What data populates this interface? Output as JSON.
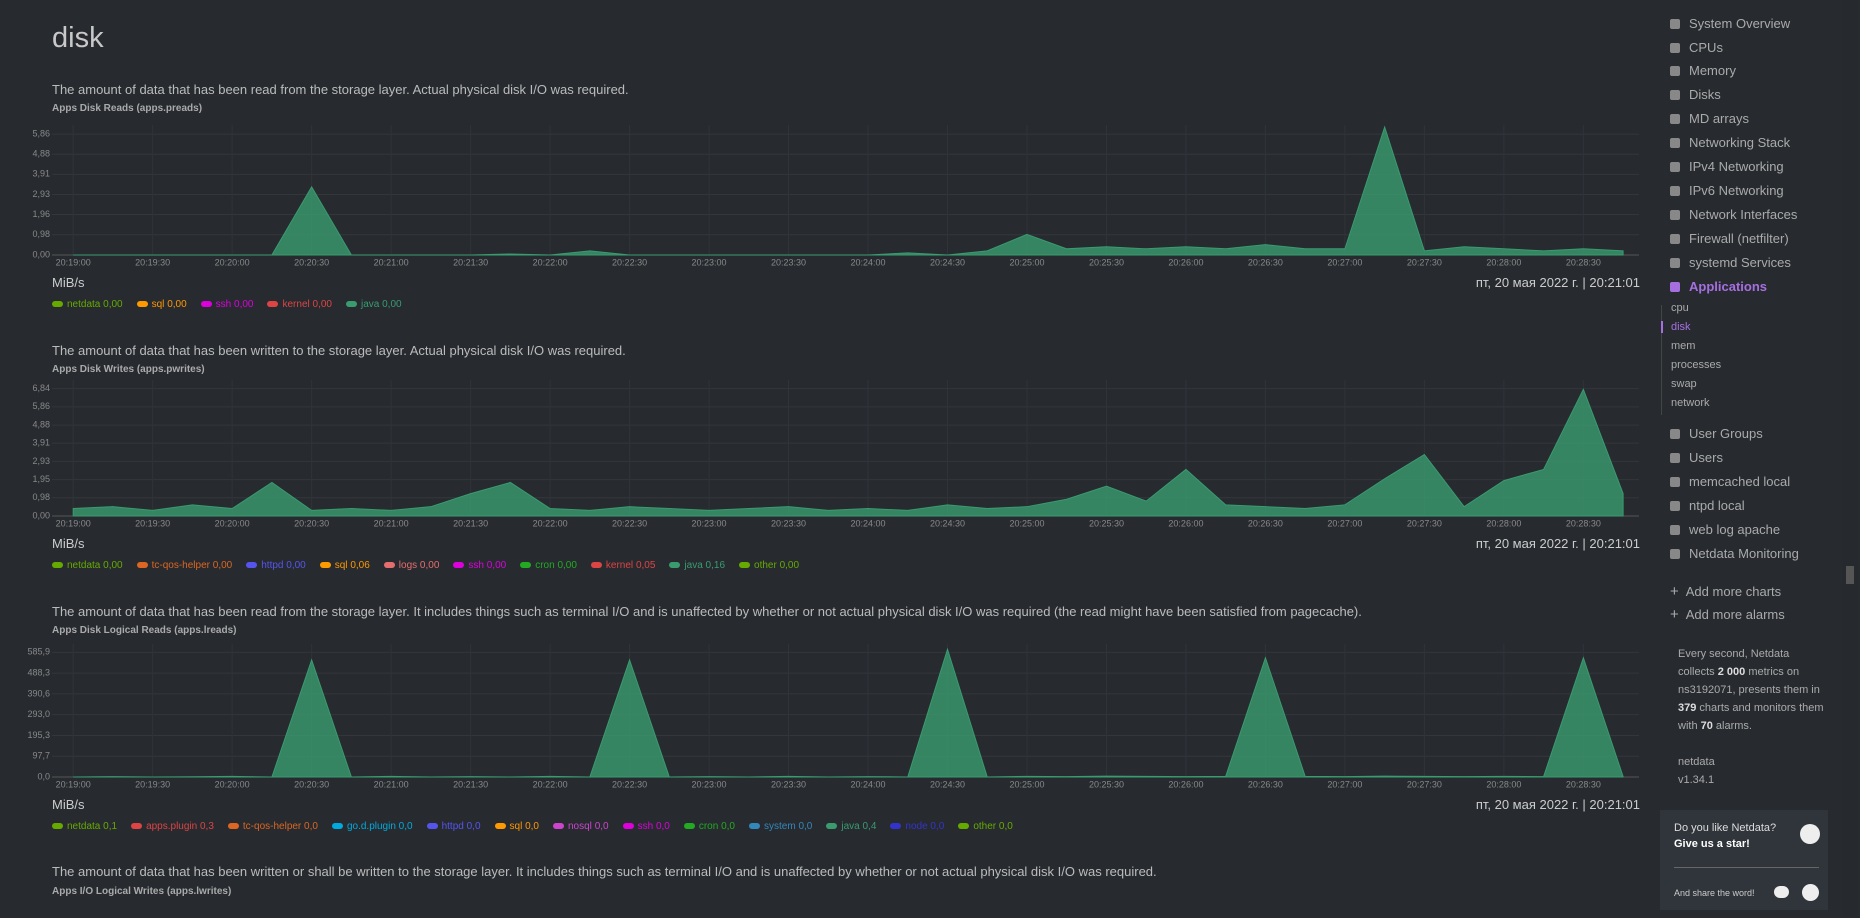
{
  "header": {
    "title": "disk"
  },
  "chart_data": [
    {
      "type": "area",
      "description": "The amount of data that has been read from the storage layer. Actual physical disk I/O was required.",
      "title": "Apps Disk Reads (apps.preads)",
      "units": "MiB/s",
      "timestamp": "пт, 20 мая 2022 г. | 20:21:01",
      "xlim": [
        73132,
        73731
      ],
      "xticks": [
        {
          "value": 73140,
          "label": "20:19:00"
        },
        {
          "value": 73170,
          "label": "20:19:30"
        },
        {
          "value": 73200,
          "label": "20:20:00"
        },
        {
          "value": 73230,
          "label": "20:20:30"
        },
        {
          "value": 73260,
          "label": "20:21:00"
        },
        {
          "value": 73290,
          "label": "20:21:30"
        },
        {
          "value": 73320,
          "label": "20:22:00"
        },
        {
          "value": 73350,
          "label": "20:22:30"
        },
        {
          "value": 73380,
          "label": "20:23:00"
        },
        {
          "value": 73410,
          "label": "20:23:30"
        },
        {
          "value": 73440,
          "label": "20:24:00"
        },
        {
          "value": 73470,
          "label": "20:24:30"
        },
        {
          "value": 73500,
          "label": "20:25:00"
        },
        {
          "value": 73530,
          "label": "20:25:30"
        },
        {
          "value": 73560,
          "label": "20:26:00"
        },
        {
          "value": 73590,
          "label": "20:26:30"
        },
        {
          "value": 73620,
          "label": "20:27:00"
        },
        {
          "value": 73650,
          "label": "20:27:30"
        },
        {
          "value": 73680,
          "label": "20:28:00"
        },
        {
          "value": 73710,
          "label": "20:28:30"
        }
      ],
      "ylim": [
        0,
        6.3
      ],
      "yticks": [
        {
          "value": 0,
          "label": "0,00"
        },
        {
          "value": 0.98,
          "label": "0,98"
        },
        {
          "value": 1.96,
          "label": "1,96"
        },
        {
          "value": 2.93,
          "label": "2,93"
        },
        {
          "value": 3.91,
          "label": "3,91"
        },
        {
          "value": 4.88,
          "label": "4,88"
        },
        {
          "value": 5.86,
          "label": "5,86"
        }
      ],
      "x": [
        73140,
        73155,
        73170,
        73185,
        73200,
        73215,
        73230,
        73245,
        73260,
        73275,
        73290,
        73305,
        73320,
        73335,
        73350,
        73365,
        73380,
        73395,
        73410,
        73425,
        73440,
        73455,
        73470,
        73485,
        73500,
        73515,
        73530,
        73545,
        73560,
        73575,
        73590,
        73605,
        73620,
        73635,
        73650,
        73665,
        73680,
        73695,
        73710,
        73725
      ],
      "series": [
        {
          "name": "netdata",
          "color": "#66aa00",
          "legend_value": "0,00"
        },
        {
          "name": "sql",
          "color": "#ff9900",
          "legend_value": "0,00"
        },
        {
          "name": "ssh",
          "color": "#dd00dd",
          "legend_value": "0,00"
        },
        {
          "name": "kernel",
          "color": "#dd4444",
          "legend_value": "0,00"
        },
        {
          "name": "java",
          "color": "#3a9b6f",
          "legend_value": "0,00",
          "values": [
            0,
            0,
            0,
            0,
            0,
            0,
            3.3,
            0,
            0,
            0,
            0,
            0.05,
            0,
            0.2,
            0,
            0,
            0,
            0,
            0,
            0,
            0,
            0.1,
            0,
            0.2,
            1.0,
            0.3,
            0.4,
            0.3,
            0.4,
            0.3,
            0.5,
            0.3,
            0.3,
            6.2,
            0.2,
            0.4,
            0.3,
            0.2,
            0.3,
            0.2
          ]
        }
      ]
    },
    {
      "type": "area",
      "description": "The amount of data that has been written to the storage layer. Actual physical disk I/O was required.",
      "title": "Apps Disk Writes (apps.pwrites)",
      "units": "MiB/s",
      "timestamp": "пт, 20 мая 2022 г. | 20:21:01",
      "xlim": [
        73132,
        73731
      ],
      "xticks": [
        {
          "value": 73140,
          "label": "20:19:00"
        },
        {
          "value": 73170,
          "label": "20:19:30"
        },
        {
          "value": 73200,
          "label": "20:20:00"
        },
        {
          "value": 73230,
          "label": "20:20:30"
        },
        {
          "value": 73260,
          "label": "20:21:00"
        },
        {
          "value": 73290,
          "label": "20:21:30"
        },
        {
          "value": 73320,
          "label": "20:22:00"
        },
        {
          "value": 73350,
          "label": "20:22:30"
        },
        {
          "value": 73380,
          "label": "20:23:00"
        },
        {
          "value": 73410,
          "label": "20:23:30"
        },
        {
          "value": 73440,
          "label": "20:24:00"
        },
        {
          "value": 73470,
          "label": "20:24:30"
        },
        {
          "value": 73500,
          "label": "20:25:00"
        },
        {
          "value": 73530,
          "label": "20:25:30"
        },
        {
          "value": 73560,
          "label": "20:26:00"
        },
        {
          "value": 73590,
          "label": "20:26:30"
        },
        {
          "value": 73620,
          "label": "20:27:00"
        },
        {
          "value": 73650,
          "label": "20:27:30"
        },
        {
          "value": 73680,
          "label": "20:28:00"
        },
        {
          "value": 73710,
          "label": "20:28:30"
        }
      ],
      "ylim": [
        0,
        7.3
      ],
      "yticks": [
        {
          "value": 0,
          "label": "0,00"
        },
        {
          "value": 0.98,
          "label": "0,98"
        },
        {
          "value": 1.95,
          "label": "1,95"
        },
        {
          "value": 2.93,
          "label": "2,93"
        },
        {
          "value": 3.91,
          "label": "3,91"
        },
        {
          "value": 4.88,
          "label": "4,88"
        },
        {
          "value": 5.86,
          "label": "5,86"
        },
        {
          "value": 6.84,
          "label": "6,84"
        }
      ],
      "x": [
        73140,
        73155,
        73170,
        73185,
        73200,
        73215,
        73230,
        73245,
        73260,
        73275,
        73290,
        73305,
        73320,
        73335,
        73350,
        73365,
        73380,
        73395,
        73410,
        73425,
        73440,
        73455,
        73470,
        73485,
        73500,
        73515,
        73530,
        73545,
        73560,
        73575,
        73590,
        73605,
        73620,
        73635,
        73650,
        73665,
        73680,
        73695,
        73710,
        73725
      ],
      "series": [
        {
          "name": "netdata",
          "color": "#66aa00",
          "legend_value": "0,00"
        },
        {
          "name": "tc-qos-helper",
          "color": "#dd6622",
          "legend_value": "0,00"
        },
        {
          "name": "httpd",
          "color": "#5555ee",
          "legend_value": "0,00"
        },
        {
          "name": "sql",
          "color": "#ff9900",
          "legend_value": "0,06"
        },
        {
          "name": "logs",
          "color": "#e56d6d",
          "legend_value": "0,00"
        },
        {
          "name": "ssh",
          "color": "#dd00dd",
          "legend_value": "0,00"
        },
        {
          "name": "cron",
          "color": "#22aa22",
          "legend_value": "0,00"
        },
        {
          "name": "kernel",
          "color": "#dd4444",
          "legend_value": "0,05"
        },
        {
          "name": "java",
          "color": "#3a9b6f",
          "legend_value": "0,16",
          "values": [
            0.4,
            0.5,
            0.3,
            0.6,
            0.4,
            1.8,
            0.3,
            0.4,
            0.3,
            0.5,
            1.2,
            1.8,
            0.4,
            0.3,
            0.5,
            0.4,
            0.3,
            0.4,
            0.5,
            0.3,
            0.4,
            0.3,
            0.6,
            0.4,
            0.5,
            0.9,
            1.6,
            0.8,
            2.5,
            0.6,
            0.5,
            0.4,
            0.6,
            2.0,
            3.3,
            0.5,
            1.9,
            2.5,
            6.8,
            1.2
          ]
        },
        {
          "name": "other",
          "color": "#66aa00",
          "legend_value": "0,00"
        }
      ]
    },
    {
      "type": "area",
      "description": "The amount of data that has been read from the storage layer. It includes things such as terminal I/O and is unaffected by whether or not actual physical disk I/O was required (the read might have been satisfied from pagecache).",
      "title": "Apps Disk Logical Reads (apps.lreads)",
      "units": "MiB/s",
      "timestamp": "пт, 20 мая 2022 г. | 20:21:01",
      "xlim": [
        73132,
        73731
      ],
      "xticks": [
        {
          "value": 73140,
          "label": "20:19:00"
        },
        {
          "value": 73170,
          "label": "20:19:30"
        },
        {
          "value": 73200,
          "label": "20:20:00"
        },
        {
          "value": 73230,
          "label": "20:20:30"
        },
        {
          "value": 73260,
          "label": "20:21:00"
        },
        {
          "value": 73290,
          "label": "20:21:30"
        },
        {
          "value": 73320,
          "label": "20:22:00"
        },
        {
          "value": 73350,
          "label": "20:22:30"
        },
        {
          "value": 73380,
          "label": "20:23:00"
        },
        {
          "value": 73410,
          "label": "20:23:30"
        },
        {
          "value": 73440,
          "label": "20:24:00"
        },
        {
          "value": 73470,
          "label": "20:24:30"
        },
        {
          "value": 73500,
          "label": "20:25:00"
        },
        {
          "value": 73530,
          "label": "20:25:30"
        },
        {
          "value": 73560,
          "label": "20:26:00"
        },
        {
          "value": 73590,
          "label": "20:26:30"
        },
        {
          "value": 73620,
          "label": "20:27:00"
        },
        {
          "value": 73650,
          "label": "20:27:30"
        },
        {
          "value": 73680,
          "label": "20:28:00"
        },
        {
          "value": 73710,
          "label": "20:28:30"
        }
      ],
      "ylim": [
        0,
        625
      ],
      "yticks": [
        {
          "value": 0,
          "label": "0,0"
        },
        {
          "value": 97.7,
          "label": "97,7"
        },
        {
          "value": 195.3,
          "label": "195,3"
        },
        {
          "value": 293,
          "label": "293,0"
        },
        {
          "value": 390.6,
          "label": "390,6"
        },
        {
          "value": 488.3,
          "label": "488,3"
        },
        {
          "value": 585.9,
          "label": "585,9"
        }
      ],
      "x": [
        73140,
        73155,
        73170,
        73185,
        73200,
        73215,
        73230,
        73245,
        73260,
        73275,
        73290,
        73305,
        73320,
        73335,
        73350,
        73365,
        73380,
        73395,
        73410,
        73425,
        73440,
        73455,
        73470,
        73485,
        73500,
        73515,
        73530,
        73545,
        73560,
        73575,
        73590,
        73605,
        73620,
        73635,
        73650,
        73665,
        73680,
        73695,
        73710,
        73725
      ],
      "series": [
        {
          "name": "netdata",
          "color": "#66aa00",
          "legend_value": "0,1"
        },
        {
          "name": "apps.plugin",
          "color": "#dd4444",
          "legend_value": "0,3"
        },
        {
          "name": "tc-qos-helper",
          "color": "#dd6622",
          "legend_value": "0,0"
        },
        {
          "name": "go.d.plugin",
          "color": "#00aadd",
          "legend_value": "0,0"
        },
        {
          "name": "httpd",
          "color": "#5555ee",
          "legend_value": "0,0"
        },
        {
          "name": "sql",
          "color": "#ff9900",
          "legend_value": "0,0"
        },
        {
          "name": "nosql",
          "color": "#cc44cc",
          "legend_value": "0,0"
        },
        {
          "name": "ssh",
          "color": "#dd00dd",
          "legend_value": "0,0"
        },
        {
          "name": "cron",
          "color": "#22aa22",
          "legend_value": "0,0"
        },
        {
          "name": "system",
          "color": "#3388bb",
          "legend_value": "0,0"
        },
        {
          "name": "java",
          "color": "#3a9b6f",
          "legend_value": "0,4",
          "values": [
            0,
            2,
            0,
            1,
            3,
            0,
            550,
            0,
            3,
            0,
            2,
            0,
            3,
            0,
            550,
            0,
            2,
            0,
            3,
            0,
            2,
            0,
            600,
            0,
            3,
            2,
            4,
            3,
            2,
            3,
            560,
            3,
            2,
            4,
            3,
            2,
            3,
            2,
            560,
            2
          ]
        },
        {
          "name": "node",
          "color": "#3333cc",
          "legend_value": "0,0"
        },
        {
          "name": "other",
          "color": "#66aa00",
          "legend_value": "0,0"
        }
      ]
    },
    {
      "type": "area",
      "description": "The amount of data that has been written or shall be written to the storage layer. It includes things such as terminal I/O and is unaffected by whether or not actual physical disk I/O was required.",
      "title": "Apps I/O Logical Writes (apps.lwrites)"
    }
  ],
  "sidebar": {
    "items": [
      "System Overview",
      "CPUs",
      "Memory",
      "Disks",
      "MD arrays",
      "Networking Stack",
      "IPv4 Networking",
      "IPv6 Networking",
      "Network Interfaces",
      "Firewall (netfilter)",
      "systemd Services",
      "Applications"
    ],
    "subitems": [
      "cpu",
      "disk",
      "mem",
      "processes",
      "swap",
      "network"
    ],
    "items2": [
      "User Groups",
      "Users",
      "memcached local",
      "ntpd local",
      "web log apache",
      "Netdata Monitoring"
    ],
    "actions": [
      "Add more charts",
      "Add more alarms"
    ],
    "info": [
      "Every second, Netdata collects ",
      "2 000",
      " metrics on ns3192071, presents them in ",
      "379",
      " charts and monitors them with ",
      "70",
      " alarms."
    ],
    "product": "netdata",
    "version": "v1.34.1",
    "star_question": "Do you like Netdata?",
    "star_cta": "Give us a star!",
    "share": "And share the word!"
  }
}
